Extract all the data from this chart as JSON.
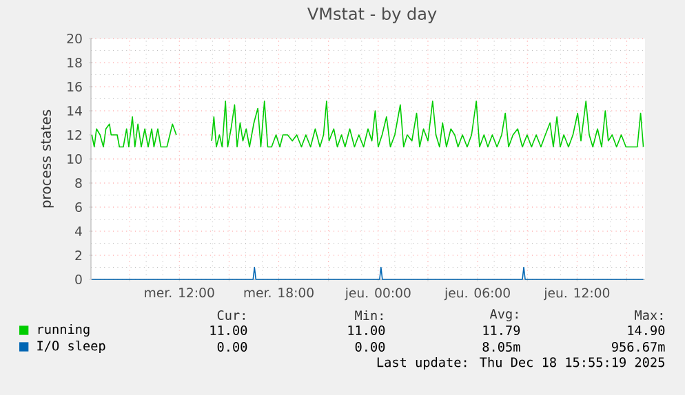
{
  "chart_data": {
    "type": "line",
    "title": "VMstat - by day",
    "ylabel": "process states",
    "xlim": [
      "2025-12-17T06:40",
      "2025-12-18T16:06"
    ],
    "xticks": [
      {
        "value": "2025-12-17T09:00",
        "label": null
      },
      {
        "value": "2025-12-17T12:00",
        "label": "mer. 12:00"
      },
      {
        "value": "2025-12-17T15:00",
        "label": null
      },
      {
        "value": "2025-12-17T18:00",
        "label": "mer. 18:00"
      },
      {
        "value": "2025-12-17T21:00",
        "label": null
      },
      {
        "value": "2025-12-18T00:00",
        "label": "jeu. 00:00"
      },
      {
        "value": "2025-12-18T03:00",
        "label": null
      },
      {
        "value": "2025-12-18T06:00",
        "label": "jeu. 06:00"
      },
      {
        "value": "2025-12-18T09:00",
        "label": null
      },
      {
        "value": "2025-12-18T12:00",
        "label": "jeu. 12:00"
      },
      {
        "value": "2025-12-18T15:00",
        "label": null
      }
    ],
    "ylim": [
      0,
      20
    ],
    "yticks": [
      0,
      2,
      4,
      6,
      8,
      10,
      12,
      14,
      16,
      18,
      20
    ],
    "grid": true,
    "legend": "bottom",
    "marker": "none",
    "line_style": "solid",
    "series": [
      {
        "name": "running",
        "color": "#00cc00",
        "x": [
          "2025-12-17T06:43",
          "2025-12-17T06:52",
          "2025-12-17T07:00",
          "2025-12-17T07:13",
          "2025-12-17T07:25",
          "2025-12-17T07:34",
          "2025-12-17T07:47",
          "2025-12-17T07:53",
          "2025-12-17T08:15",
          "2025-12-17T08:23",
          "2025-12-17T08:37",
          "2025-12-17T08:49",
          "2025-12-17T08:57",
          "2025-12-17T09:10",
          "2025-12-17T09:19",
          "2025-12-17T09:30",
          "2025-12-17T09:42",
          "2025-12-17T09:55",
          "2025-12-17T10:07",
          "2025-12-17T10:20",
          "2025-12-17T10:28",
          "2025-12-17T10:42",
          "2025-12-17T10:53",
          "2025-12-17T11:15",
          "2025-12-17T11:35",
          "2025-12-17T11:49",
          "2025-12-17T12:30",
          "2025-12-17T13:57",
          "2025-12-17T14:05",
          "2025-12-17T14:14",
          "2025-12-17T14:25",
          "2025-12-17T14:35",
          "2025-12-17T14:47",
          "2025-12-17T14:55",
          "2025-12-17T15:07",
          "2025-12-17T15:20",
          "2025-12-17T15:29",
          "2025-12-17T15:40",
          "2025-12-17T15:50",
          "2025-12-17T16:02",
          "2025-12-17T16:14",
          "2025-12-17T16:30",
          "2025-12-17T16:44",
          "2025-12-17T16:55",
          "2025-12-17T17:08",
          "2025-12-17T17:20",
          "2025-12-17T17:34",
          "2025-12-17T17:50",
          "2025-12-17T18:04",
          "2025-12-17T18:15",
          "2025-12-17T18:32",
          "2025-12-17T18:49",
          "2025-12-17T19:05",
          "2025-12-17T19:22",
          "2025-12-17T19:38",
          "2025-12-17T19:55",
          "2025-12-17T20:12",
          "2025-12-17T20:29",
          "2025-12-17T20:42",
          "2025-12-17T20:53",
          "2025-12-17T21:02",
          "2025-12-17T21:19",
          "2025-12-17T21:32",
          "2025-12-17T21:47",
          "2025-12-17T22:00",
          "2025-12-17T22:17",
          "2025-12-17T22:34",
          "2025-12-17T22:50",
          "2025-12-17T23:07",
          "2025-12-17T23:23",
          "2025-12-17T23:37",
          "2025-12-17T23:49",
          "2025-12-18T00:00",
          "2025-12-18T00:14",
          "2025-12-18T00:30",
          "2025-12-18T00:44",
          "2025-12-18T01:00",
          "2025-12-18T01:20",
          "2025-12-18T01:32",
          "2025-12-18T01:45",
          "2025-12-18T02:02",
          "2025-12-18T02:19",
          "2025-12-18T02:30",
          "2025-12-18T02:44",
          "2025-12-18T03:00",
          "2025-12-18T03:17",
          "2025-12-18T03:29",
          "2025-12-18T03:42",
          "2025-12-18T03:53",
          "2025-12-18T04:07",
          "2025-12-18T04:23",
          "2025-12-18T04:37",
          "2025-12-18T04:49",
          "2025-12-18T05:05",
          "2025-12-18T05:22",
          "2025-12-18T05:38",
          "2025-12-18T05:55",
          "2025-12-18T06:07",
          "2025-12-18T06:23",
          "2025-12-18T06:37",
          "2025-12-18T06:53",
          "2025-12-18T07:10",
          "2025-12-18T07:27",
          "2025-12-18T07:40",
          "2025-12-18T07:52",
          "2025-12-18T08:08",
          "2025-12-18T08:25",
          "2025-12-18T08:42",
          "2025-12-18T08:59",
          "2025-12-18T09:15",
          "2025-12-18T09:32",
          "2025-12-18T09:49",
          "2025-12-18T10:05",
          "2025-12-18T10:22",
          "2025-12-18T10:34",
          "2025-12-18T10:47",
          "2025-12-18T10:59",
          "2025-12-18T11:12",
          "2025-12-18T11:29",
          "2025-12-18T11:45",
          "2025-12-18T12:02",
          "2025-12-18T12:14",
          "2025-12-18T12:32",
          "2025-12-18T12:44",
          "2025-12-18T12:57",
          "2025-12-18T13:14",
          "2025-12-18T13:29",
          "2025-12-18T13:42",
          "2025-12-18T13:53",
          "2025-12-18T14:07",
          "2025-12-18T14:23",
          "2025-12-18T14:40",
          "2025-12-18T14:57",
          "2025-12-18T15:14",
          "2025-12-18T15:38",
          "2025-12-18T15:50",
          "2025-12-18T16:00"
        ],
        "values": [
          12,
          11,
          12.5,
          12,
          11,
          12.5,
          12.9,
          12,
          12,
          11,
          11,
          12.5,
          11,
          13.5,
          11,
          12.9,
          11,
          12.5,
          11,
          12.5,
          11,
          12.5,
          11,
          11,
          12.9,
          12,
          null,
          11.5,
          13.5,
          11,
          12,
          11,
          14.8,
          11,
          12.5,
          14.5,
          11,
          13,
          11.5,
          12.5,
          11,
          13,
          14.2,
          11,
          14.8,
          11,
          11,
          12,
          11,
          12,
          12,
          11.5,
          12,
          11,
          12,
          11,
          12.5,
          11,
          12,
          14.8,
          11.5,
          12.5,
          11,
          12,
          11,
          12.5,
          11,
          12,
          11,
          12.5,
          11.5,
          14,
          11,
          12,
          13.5,
          11,
          12,
          14.5,
          11,
          12,
          11.5,
          13.8,
          11,
          12.5,
          11.5,
          14.8,
          12,
          11,
          13,
          11,
          12.5,
          12,
          11,
          12,
          11,
          12,
          14.8,
          11,
          12,
          11,
          12,
          11,
          12,
          13.8,
          11,
          12,
          12.5,
          11,
          12,
          11,
          12,
          11,
          12,
          13,
          11,
          13.5,
          11,
          12,
          11,
          12,
          13.8,
          11.5,
          14.8,
          12,
          11,
          12.5,
          11,
          14,
          11.5,
          12,
          11,
          12,
          11,
          11,
          11,
          13.8,
          11
        ]
      },
      {
        "name": "I/O sleep",
        "color": "#0066b3",
        "x": [
          "2025-12-17T06:43",
          "2025-12-17T16:27",
          "2025-12-17T16:32",
          "2025-12-17T16:37",
          "2025-12-18T00:05",
          "2025-12-18T00:10",
          "2025-12-18T00:15",
          "2025-12-18T08:42",
          "2025-12-18T08:47",
          "2025-12-18T08:52",
          "2025-12-18T16:00"
        ],
        "values": [
          0,
          0,
          1,
          0,
          0,
          1,
          0,
          0,
          1,
          0,
          0
        ]
      }
    ],
    "annotations": [
      "Cur:",
      "Min:",
      "Avg:",
      "Max:",
      "11.00",
      "11.00",
      "11.79",
      "14.90",
      "0.00",
      "0.00",
      "8.05m",
      "956.67m",
      "Last update: Thu Dec 18 15:55:19 2025"
    ]
  }
}
